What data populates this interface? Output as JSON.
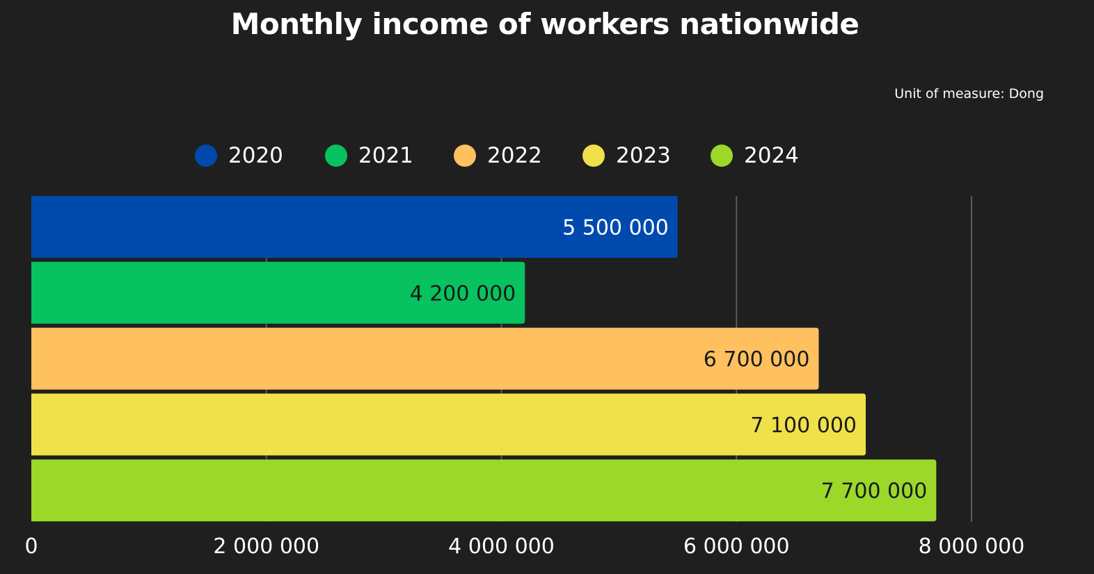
{
  "chart_data": {
    "type": "bar",
    "orientation": "horizontal",
    "title": "Monthly income of workers nationwide",
    "unit_note": "Unit of measure: Dong",
    "legend_position": "top",
    "categories": [
      "2020",
      "2021",
      "2022",
      "2023",
      "2024"
    ],
    "values": [
      5500000,
      4200000,
      6700000,
      7100000,
      7700000
    ],
    "value_labels": [
      "5 500 000",
      "4 200 000",
      "6 700 000",
      "7 100 000",
      "7 700 000"
    ],
    "colors": [
      "#004aad",
      "#08c15f",
      "#ffc05f",
      "#f0e04a",
      "#9bd82a"
    ],
    "label_colors": [
      "#ffffff",
      "#1a1a1a",
      "#1a1a1a",
      "#1a1a1a",
      "#1a1a1a"
    ],
    "xlim": [
      0,
      8000000
    ],
    "xticks": [
      0,
      2000000,
      4000000,
      6000000,
      8000000
    ],
    "xtick_labels": [
      "0",
      "2 000 000",
      "4 000 000",
      "6 000 000",
      "8 000 000"
    ],
    "grid": true
  }
}
